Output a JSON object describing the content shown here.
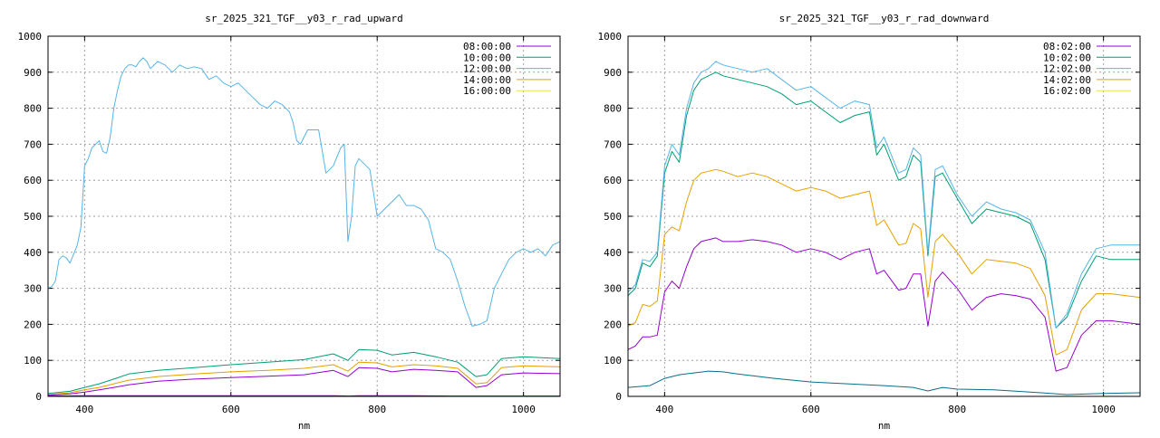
{
  "colors": {
    "08": "#9400d3",
    "10": "#009e73",
    "12": "#56b4e9",
    "14": "#e69f00",
    "16": "#f0e442",
    "dark": "#0a6e8a"
  },
  "chart_data": [
    {
      "type": "line",
      "title": "sr_2025_321_TGF__y03_r_rad_upward",
      "xlabel": "nm",
      "ylabel": "",
      "xlim": [
        350,
        1050
      ],
      "ylim": [
        0,
        1000
      ],
      "xticks": [
        400,
        600,
        800,
        1000
      ],
      "yticks": [
        0,
        100,
        200,
        300,
        400,
        500,
        600,
        700,
        800,
        900,
        1000
      ],
      "grid": true,
      "legend_position": "top-right",
      "legend": [
        "08:00:00",
        "10:00:00",
        "12:00:00",
        "14:00:00",
        "16:00:00"
      ],
      "series": [
        {
          "name": "08:00:00",
          "color": "#9400d3",
          "x": [
            350,
            400,
            450,
            500,
            550,
            600,
            650,
            700,
            740,
            760,
            775,
            800,
            850,
            900,
            935,
            960,
            1000,
            1050
          ],
          "y": [
            1,
            2,
            2,
            2,
            2,
            2,
            2,
            2,
            2,
            1,
            2,
            2,
            2,
            1,
            1,
            1,
            1,
            1
          ]
        },
        {
          "name": "10:00:00",
          "color": "#009e73",
          "x": [
            350,
            380,
            400,
            420,
            440,
            460,
            500,
            550,
            600,
            650,
            700,
            740,
            760,
            775,
            800,
            820,
            850,
            880,
            910,
            935,
            950,
            970,
            1000,
            1050
          ],
          "y": [
            8,
            14,
            25,
            35,
            48,
            62,
            72,
            80,
            88,
            95,
            102,
            118,
            100,
            130,
            128,
            115,
            122,
            110,
            95,
            55,
            60,
            105,
            110,
            105
          ]
        },
        {
          "name": "12:00:00",
          "color": "#56b4e9",
          "x": [
            350,
            355,
            360,
            365,
            370,
            375,
            380,
            385,
            390,
            395,
            400,
            405,
            410,
            415,
            420,
            425,
            430,
            435,
            440,
            445,
            450,
            455,
            460,
            465,
            470,
            475,
            480,
            485,
            490,
            500,
            510,
            520,
            530,
            540,
            550,
            560,
            570,
            580,
            590,
            600,
            610,
            620,
            630,
            640,
            650,
            660,
            670,
            680,
            685,
            690,
            695,
            700,
            705,
            710,
            720,
            730,
            740,
            750,
            755,
            760,
            765,
            770,
            775,
            780,
            790,
            800,
            810,
            820,
            830,
            840,
            850,
            860,
            870,
            880,
            890,
            900,
            910,
            920,
            930,
            940,
            950,
            960,
            970,
            980,
            990,
            1000,
            1010,
            1020,
            1030,
            1040,
            1050
          ],
          "y": [
            300,
            305,
            320,
            380,
            390,
            385,
            370,
            395,
            420,
            470,
            640,
            660,
            690,
            700,
            710,
            680,
            675,
            720,
            800,
            850,
            890,
            910,
            920,
            920,
            915,
            930,
            940,
            930,
            910,
            930,
            920,
            900,
            920,
            910,
            915,
            910,
            880,
            890,
            870,
            860,
            870,
            850,
            830,
            810,
            800,
            820,
            810,
            790,
            760,
            710,
            700,
            720,
            740,
            740,
            740,
            620,
            640,
            690,
            700,
            430,
            500,
            640,
            660,
            650,
            630,
            500,
            520,
            540,
            560,
            530,
            530,
            520,
            490,
            410,
            400,
            380,
            320,
            250,
            195,
            200,
            210,
            300,
            340,
            380,
            400,
            410,
            400,
            410,
            390,
            420,
            430
          ]
        },
        {
          "name": "14:00:00",
          "color": "#e69f00",
          "x": [
            350,
            380,
            400,
            420,
            440,
            460,
            500,
            550,
            600,
            650,
            700,
            740,
            760,
            775,
            800,
            820,
            850,
            880,
            910,
            935,
            950,
            970,
            1000,
            1050
          ],
          "y": [
            5,
            10,
            18,
            25,
            35,
            45,
            55,
            62,
            68,
            72,
            78,
            88,
            70,
            95,
            93,
            82,
            88,
            85,
            78,
            35,
            38,
            80,
            85,
            82
          ]
        },
        {
          "name": "16:00:00",
          "color": "#f0e442",
          "x": [
            350,
            1050
          ],
          "y": [
            0,
            0
          ]
        },
        {
          "name": "",
          "color": "#9400d3",
          "x": [
            350,
            380,
            400,
            420,
            440,
            460,
            500,
            550,
            600,
            650,
            700,
            740,
            760,
            775,
            800,
            820,
            850,
            880,
            910,
            935,
            950,
            970,
            1000,
            1050
          ],
          "y": [
            3,
            7,
            12,
            18,
            25,
            32,
            42,
            48,
            52,
            56,
            60,
            72,
            55,
            80,
            78,
            68,
            75,
            72,
            68,
            25,
            30,
            60,
            65,
            63
          ]
        }
      ]
    },
    {
      "type": "line",
      "title": "sr_2025_321_TGF__y03_r_rad_downward",
      "xlabel": "nm",
      "ylabel": "",
      "xlim": [
        350,
        1050
      ],
      "ylim": [
        0,
        1000
      ],
      "xticks": [
        400,
        600,
        800,
        1000
      ],
      "yticks": [
        0,
        100,
        200,
        300,
        400,
        500,
        600,
        700,
        800,
        900,
        1000
      ],
      "grid": true,
      "legend_position": "top-right",
      "legend": [
        "08:02:00",
        "10:02:00",
        "12:02:00",
        "14:02:00",
        "16:02:00"
      ],
      "series": [
        {
          "name": "08:02:00",
          "color": "#9400d3",
          "x": [
            350,
            360,
            370,
            380,
            390,
            400,
            410,
            420,
            430,
            440,
            450,
            460,
            470,
            480,
            500,
            520,
            540,
            560,
            580,
            600,
            620,
            640,
            660,
            680,
            690,
            700,
            720,
            730,
            740,
            750,
            760,
            770,
            780,
            800,
            820,
            840,
            860,
            880,
            900,
            920,
            935,
            950,
            970,
            990,
            1010,
            1050
          ],
          "y": [
            130,
            140,
            165,
            165,
            170,
            290,
            320,
            300,
            360,
            410,
            430,
            435,
            440,
            430,
            430,
            435,
            430,
            420,
            400,
            410,
            400,
            380,
            400,
            410,
            340,
            350,
            295,
            300,
            340,
            340,
            195,
            320,
            345,
            300,
            240,
            275,
            285,
            280,
            270,
            220,
            70,
            80,
            170,
            210,
            210,
            200
          ]
        },
        {
          "name": "10:02:00",
          "color": "#009e73",
          "x": [
            350,
            360,
            370,
            380,
            390,
            400,
            410,
            420,
            430,
            440,
            450,
            460,
            470,
            480,
            500,
            520,
            540,
            560,
            580,
            600,
            620,
            640,
            660,
            680,
            690,
            700,
            720,
            730,
            740,
            750,
            760,
            770,
            780,
            800,
            820,
            840,
            860,
            880,
            900,
            920,
            935,
            950,
            970,
            990,
            1010,
            1050
          ],
          "y": [
            280,
            300,
            370,
            360,
            390,
            620,
            680,
            650,
            780,
            850,
            880,
            890,
            900,
            890,
            880,
            870,
            860,
            840,
            810,
            820,
            790,
            760,
            780,
            790,
            670,
            700,
            600,
            610,
            670,
            650,
            390,
            610,
            620,
            550,
            480,
            520,
            510,
            500,
            480,
            380,
            190,
            220,
            320,
            390,
            380,
            380
          ]
        },
        {
          "name": "12:02:00",
          "color": "#56b4e9",
          "x": [
            350,
            360,
            370,
            380,
            390,
            400,
            410,
            420,
            430,
            440,
            450,
            460,
            470,
            480,
            500,
            520,
            540,
            560,
            580,
            600,
            620,
            640,
            660,
            680,
            690,
            700,
            720,
            730,
            740,
            750,
            760,
            770,
            780,
            800,
            820,
            840,
            860,
            880,
            900,
            920,
            935,
            950,
            970,
            990,
            1010,
            1050
          ],
          "y": [
            290,
            310,
            380,
            375,
            400,
            640,
            700,
            670,
            800,
            870,
            900,
            910,
            930,
            920,
            910,
            900,
            910,
            880,
            850,
            860,
            830,
            800,
            820,
            810,
            690,
            720,
            620,
            630,
            690,
            670,
            400,
            630,
            640,
            560,
            500,
            540,
            520,
            510,
            490,
            400,
            190,
            230,
            340,
            410,
            420,
            420
          ]
        },
        {
          "name": "14:02:00",
          "color": "#e69f00",
          "x": [
            350,
            360,
            370,
            380,
            390,
            400,
            410,
            420,
            430,
            440,
            450,
            460,
            470,
            480,
            500,
            520,
            540,
            560,
            580,
            600,
            620,
            640,
            660,
            680,
            690,
            700,
            720,
            730,
            740,
            750,
            760,
            770,
            780,
            800,
            820,
            840,
            860,
            880,
            900,
            920,
            935,
            950,
            970,
            990,
            1010,
            1050
          ],
          "y": [
            195,
            205,
            255,
            250,
            265,
            450,
            470,
            460,
            540,
            600,
            620,
            625,
            630,
            625,
            610,
            620,
            610,
            590,
            570,
            580,
            570,
            550,
            560,
            570,
            475,
            490,
            420,
            425,
            480,
            465,
            275,
            430,
            450,
            400,
            340,
            380,
            375,
            370,
            355,
            280,
            115,
            130,
            240,
            285,
            285,
            275
          ]
        },
        {
          "name": "16:02:00",
          "color": "#f0e442",
          "x": [
            350,
            1050
          ],
          "y": [
            0,
            0
          ]
        },
        {
          "name": "",
          "color": "#0a6e8a",
          "x": [
            350,
            380,
            400,
            420,
            440,
            460,
            480,
            500,
            550,
            600,
            650,
            700,
            740,
            760,
            780,
            800,
            850,
            900,
            950,
            1000,
            1050
          ],
          "y": [
            25,
            30,
            50,
            60,
            65,
            70,
            68,
            62,
            50,
            40,
            35,
            30,
            25,
            15,
            25,
            20,
            18,
            12,
            5,
            8,
            10
          ]
        }
      ]
    }
  ]
}
